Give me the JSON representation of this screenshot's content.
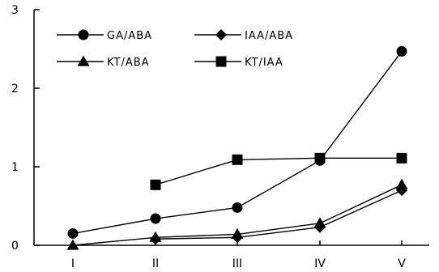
{
  "chart_data": {
    "type": "line",
    "categories": [
      "I",
      "II",
      "III",
      "IV",
      "V"
    ],
    "yticks": [
      "0",
      "1",
      "2",
      "3"
    ],
    "ylim": [
      0,
      3
    ],
    "grid": false,
    "legend_placement": "top-left, two columns",
    "series": [
      {
        "name": "GA/ABA",
        "marker": "circle",
        "values": [
          0.15,
          0.34,
          0.48,
          1.08,
          2.47
        ]
      },
      {
        "name": "IAA/ABA",
        "marker": "diamond",
        "values": [
          null,
          0.08,
          0.1,
          0.23,
          0.7
        ]
      },
      {
        "name": "KT/ABA",
        "marker": "triangle",
        "values": [
          0.0,
          0.1,
          0.14,
          0.28,
          0.77
        ]
      },
      {
        "name": "KT/IAA",
        "marker": "square",
        "values": [
          null,
          0.77,
          1.09,
          1.11,
          1.11
        ]
      }
    ],
    "colors": {
      "line": "#000000",
      "marker": "#000000",
      "background": "#ffffff"
    }
  }
}
